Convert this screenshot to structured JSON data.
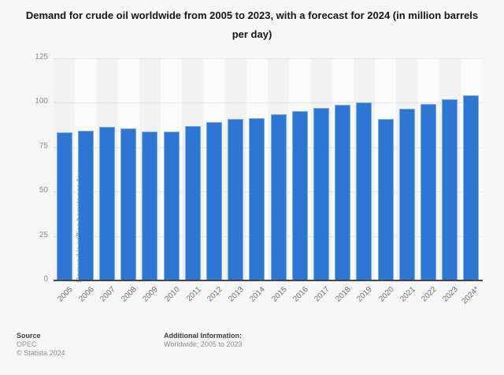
{
  "title": "Demand for crude oil worldwide from 2005 to 2023, with a forecast for 2024 (in million barrels per day)",
  "chart_data": {
    "type": "bar",
    "categories": [
      "2005",
      "2006",
      "2007",
      "2008",
      "2009",
      "2010",
      "2011",
      "2012",
      "2013",
      "2014",
      "2015",
      "2016",
      "2017",
      "2018",
      "2019",
      "2020",
      "2021",
      "2022",
      "2023",
      "2024*"
    ],
    "values": [
      83.3,
      84.4,
      86.3,
      85.5,
      83.9,
      84.0,
      87.1,
      88.9,
      91.0,
      91.5,
      93.7,
      95.3,
      96.9,
      98.7,
      100.0,
      90.8,
      96.8,
      99.1,
      101.8,
      104.1
    ],
    "title": "Demand for crude oil worldwide from 2005 to 2023, with a forecast for 2024 (in million barrels per day)",
    "xlabel": "",
    "ylabel": "Demand in million barrels per day",
    "ylim": [
      0,
      125
    ],
    "yticks": [
      0,
      25,
      50,
      75,
      100,
      125
    ],
    "grid": true,
    "legend": "none",
    "bar_color": "#2d76d4",
    "axis_line_color": "#484848",
    "plot_band_colors": [
      "#f1f2f4",
      "#fafbfb"
    ]
  },
  "footer": {
    "source_label": "Source",
    "source_value": "OPEC",
    "copyright": "© Statista 2024",
    "additional_info_label": "Additional Information:",
    "additional_info_value": "Worldwide; 2005 to 2023"
  }
}
